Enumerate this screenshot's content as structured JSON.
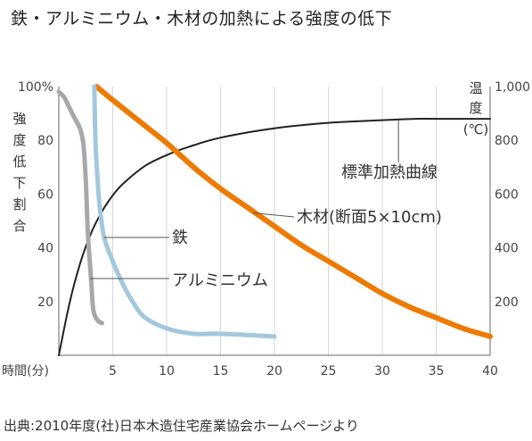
{
  "title": "鉄・アルミニウム・木材の加熱による強度の低下",
  "source": "出典:2010年度(社)日本木造住宅産業協会ホームページより",
  "chart_data": {
    "type": "line",
    "x_axis": {
      "label": "時間(分)",
      "range": [
        0,
        40
      ],
      "ticks": [
        5,
        10,
        15,
        20,
        25,
        30,
        35,
        40
      ],
      "tick_labels": [
        "5",
        "10",
        "15",
        "20",
        "25",
        "30",
        "35",
        "40"
      ]
    },
    "y_left": {
      "label": "強度低下割合",
      "range": [
        0,
        100
      ],
      "ticks": [
        20,
        40,
        60,
        80,
        100
      ],
      "tick_labels": [
        "20",
        "40",
        "60",
        "80",
        "100%"
      ]
    },
    "y_right": {
      "label": "温度(℃)",
      "range": [
        0,
        1000
      ],
      "ticks": [
        200,
        400,
        600,
        800,
        1000
      ],
      "tick_labels": [
        "200",
        "400",
        "600",
        "800",
        "1,000"
      ]
    },
    "grid": "vertical",
    "series": [
      {
        "name": "標準加熱曲線",
        "axis": "right",
        "color": "#222222",
        "x": [
          0,
          1,
          2,
          3,
          4,
          5,
          6,
          8,
          10,
          12,
          15,
          20,
          25,
          30,
          33,
          35,
          40
        ],
        "y": [
          0,
          195,
          345,
          455,
          535,
          595,
          640,
          705,
          745,
          775,
          810,
          845,
          865,
          875,
          880,
          880,
          880
        ]
      },
      {
        "name": "木材(断面5×10cm)",
        "axis": "left",
        "color": "#ee7a00",
        "x": [
          3.5,
          5,
          7.5,
          10,
          12.5,
          15,
          17.5,
          20,
          22.5,
          25,
          27.5,
          30,
          32.5,
          35,
          37.5,
          40
        ],
        "y": [
          100,
          95,
          87,
          79,
          70,
          62,
          55,
          48,
          41,
          35,
          29,
          23,
          18,
          14,
          10,
          7
        ]
      },
      {
        "name": "鉄",
        "axis": "left",
        "color": "#a8a8a8",
        "x": [
          0,
          0.5,
          1,
          1.5,
          2,
          2.3,
          2.5,
          2.7,
          3,
          3.2,
          3.6,
          4
        ],
        "y": [
          98,
          96,
          92,
          88,
          84,
          78,
          65,
          45,
          28,
          17,
          13,
          12
        ]
      },
      {
        "name": "アルミニウム",
        "axis": "left",
        "color": "#a3c8dc",
        "x": [
          3.3,
          3.4,
          3.6,
          3.8,
          4.2,
          5,
          6,
          7,
          8,
          10,
          12.5,
          15,
          20
        ],
        "y": [
          100,
          80,
          65,
          55,
          44,
          35,
          26,
          19,
          14,
          10,
          8,
          8,
          7
        ]
      }
    ],
    "annotations": [
      "標準加熱曲線",
      "木材(断面5×10cm)",
      "鉄",
      "アルミニウム"
    ]
  }
}
